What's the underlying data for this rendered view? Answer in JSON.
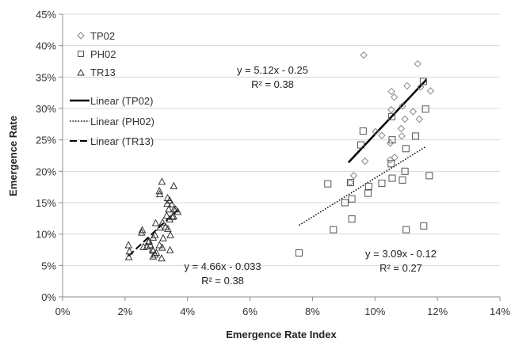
{
  "chart_data": {
    "type": "scatter",
    "title": "",
    "xlabel": "Emergence Rate Index",
    "ylabel": "Emergence Rate",
    "xlim": [
      0,
      0.14
    ],
    "ylim": [
      0,
      0.45
    ],
    "x_ticks": [
      0,
      0.02,
      0.04,
      0.06,
      0.08,
      0.1,
      0.12,
      0.14
    ],
    "y_ticks": [
      0,
      0.05,
      0.1,
      0.15,
      0.2,
      0.25,
      0.3,
      0.35,
      0.4,
      0.45
    ],
    "x_tick_labels": [
      "0%",
      "2%",
      "4%",
      "6%",
      "8%",
      "10%",
      "12%",
      "14%"
    ],
    "y_tick_labels": [
      "0%",
      "5%",
      "10%",
      "15%",
      "20%",
      "25%",
      "30%",
      "35%",
      "40%",
      "45%"
    ],
    "grid": "horizontal",
    "legend_position": "top-left",
    "series": [
      {
        "name": "TP02",
        "marker": "diamond",
        "color": "#888888",
        "x": [
          0.0964,
          0.1137,
          0.1053,
          0.1062,
          0.1103,
          0.1178,
          0.1146,
          0.1052,
          0.1088,
          0.1122,
          0.1096,
          0.1084,
          0.1086,
          0.1002,
          0.1022,
          0.1049,
          0.0932,
          0.0921,
          0.0968,
          0.1063,
          0.1049,
          0.1142
        ],
        "y": [
          0.385,
          0.371,
          0.327,
          0.318,
          0.336,
          0.328,
          0.334,
          0.298,
          0.304,
          0.295,
          0.283,
          0.268,
          0.256,
          0.263,
          0.257,
          0.245,
          0.193,
          0.182,
          0.216,
          0.222,
          0.218,
          0.283
        ]
      },
      {
        "name": "PH02",
        "marker": "square",
        "color": "#555555",
        "x": [
          0.1155,
          0.1162,
          0.1054,
          0.1099,
          0.1055,
          0.0955,
          0.0962,
          0.1022,
          0.113,
          0.1174,
          0.1052,
          0.1096,
          0.1088,
          0.1055,
          0.098,
          0.0922,
          0.0849,
          0.0904,
          0.0978,
          0.0926,
          0.0867,
          0.0926,
          0.11,
          0.1156,
          0.0757
        ],
        "y": [
          0.343,
          0.299,
          0.287,
          0.236,
          0.25,
          0.242,
          0.264,
          0.181,
          0.256,
          0.193,
          0.212,
          0.2,
          0.186,
          0.189,
          0.176,
          0.182,
          0.18,
          0.15,
          0.165,
          0.156,
          0.107,
          0.124,
          0.107,
          0.113,
          0.07
        ]
      },
      {
        "name": "TR13",
        "marker": "triangle",
        "color": "#333333",
        "x": [
          0.0318,
          0.031,
          0.0336,
          0.0356,
          0.0343,
          0.0335,
          0.034,
          0.0311,
          0.035,
          0.0357,
          0.0369,
          0.0333,
          0.032,
          0.0298,
          0.0343,
          0.033,
          0.0355,
          0.0362,
          0.0312,
          0.0337,
          0.0345,
          0.0322,
          0.0255,
          0.0253,
          0.0296,
          0.029,
          0.0277,
          0.0281,
          0.0259,
          0.0288,
          0.0319,
          0.0344,
          0.029,
          0.0296,
          0.027,
          0.0211,
          0.0214,
          0.0275,
          0.03,
          0.0317,
          0.0352,
          0.0212,
          0.031,
          0.029
        ],
        "y": [
          0.183,
          0.168,
          0.157,
          0.176,
          0.153,
          0.148,
          0.139,
          0.163,
          0.147,
          0.139,
          0.135,
          0.129,
          0.118,
          0.117,
          0.123,
          0.111,
          0.128,
          0.139,
          0.11,
          0.108,
          0.098,
          0.093,
          0.106,
          0.102,
          0.098,
          0.094,
          0.088,
          0.082,
          0.079,
          0.075,
          0.078,
          0.074,
          0.073,
          0.067,
          0.08,
          0.082,
          0.072,
          0.087,
          0.07,
          0.061,
          0.127,
          0.063,
          0.082,
          0.064
        ]
      }
    ],
    "trendlines": [
      {
        "name": "Linear (TP02)",
        "style": "solid",
        "x_range": [
          0.0915,
          0.1165
        ],
        "y_range": [
          0.214,
          0.346
        ],
        "equation": "y = 5.12x - 0.25",
        "r2": "R² = 0.38"
      },
      {
        "name": "Linear (PH02)",
        "style": "dotted",
        "x_range": [
          0.0757,
          0.1162
        ],
        "y_range": [
          0.114,
          0.239
        ],
        "equation": "y = 3.09x - 0.12",
        "r2": "R² = 0.27"
      },
      {
        "name": "Linear (TR13)",
        "style": "dashed",
        "x_range": [
          0.0211,
          0.0369
        ],
        "y_range": [
          0.065,
          0.139
        ],
        "equation": "y = 4.66x - 0.033",
        "r2": "R² = 0.38"
      }
    ]
  }
}
